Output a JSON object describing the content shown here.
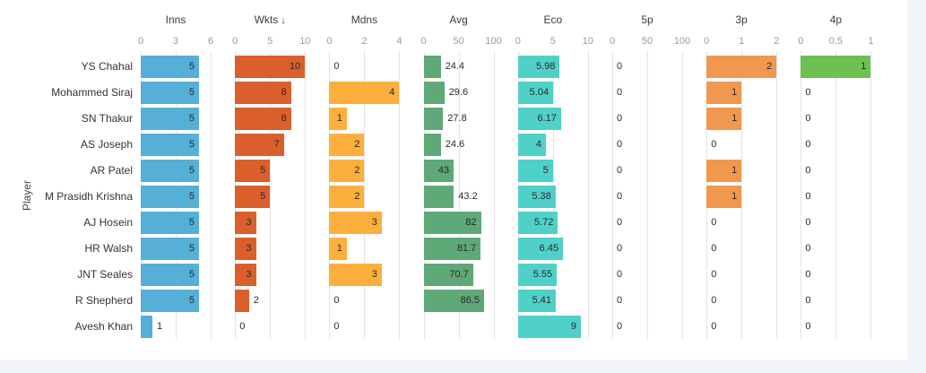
{
  "page": {
    "background_color": "#f1f4f9",
    "card_color": "#ffffff",
    "grid_color": "#e4e4e4"
  },
  "chart_data": {
    "type": "bar",
    "orientation": "horizontal",
    "title": "",
    "ylabel": "Player",
    "grid": true,
    "legend_position": "none",
    "categories": [
      "YS Chahal",
      "Mohammed Siraj",
      "SN Thakur",
      "AS Joseph",
      "AR Patel",
      "M Prasidh Krishna",
      "AJ Hosein",
      "HR Walsh",
      "JNT Seales",
      "R Shepherd",
      "Avesh Khan"
    ],
    "series": [
      {
        "name": "Inns",
        "sort_arrow": "",
        "color": "#55afd7",
        "axis_max": 6,
        "tick_labels": [
          "0",
          "3",
          "6"
        ],
        "values": [
          5,
          5,
          5,
          5,
          5,
          5,
          5,
          5,
          5,
          5,
          1
        ]
      },
      {
        "name": "Wkts",
        "sort_arrow": "↓",
        "color": "#db5f2d",
        "axis_max": 10,
        "tick_labels": [
          "0",
          "5",
          "10"
        ],
        "values": [
          10,
          8,
          8,
          7,
          5,
          5,
          3,
          3,
          3,
          2,
          0
        ]
      },
      {
        "name": "Mdns",
        "sort_arrow": "",
        "color": "#fcaf3c",
        "axis_max": 4,
        "tick_labels": [
          "0",
          "2",
          "4"
        ],
        "values": [
          0,
          4,
          1,
          2,
          2,
          2,
          3,
          1,
          3,
          0,
          0
        ]
      },
      {
        "name": "Avg",
        "sort_arrow": "",
        "color": "#5fa877",
        "axis_max": 100,
        "tick_labels": [
          "0",
          "50",
          "100"
        ],
        "values": [
          24.4,
          29.6,
          27.8,
          24.6,
          43,
          43.2,
          82,
          81.7,
          70.7,
          86.5,
          null
        ]
      },
      {
        "name": "Eco",
        "sort_arrow": "",
        "color": "#4fd1c9",
        "axis_max": 10,
        "tick_labels": [
          "0",
          "5",
          "10"
        ],
        "values": [
          5.98,
          5.04,
          6.17,
          4,
          5,
          5.38,
          5.72,
          6.45,
          5.55,
          5.41,
          9
        ]
      },
      {
        "name": "5p",
        "sort_arrow": "",
        "color": "#b08bd0",
        "axis_max": 100,
        "tick_labels": [
          "0",
          "50",
          "100"
        ],
        "values": [
          0,
          0,
          0,
          0,
          0,
          0,
          0,
          0,
          0,
          0,
          0
        ]
      },
      {
        "name": "3p",
        "sort_arrow": "",
        "color": "#f0984e",
        "axis_max": 2,
        "tick_labels": [
          "0",
          "1",
          "2"
        ],
        "values": [
          2,
          1,
          1,
          0,
          1,
          1,
          0,
          0,
          0,
          0,
          0
        ]
      },
      {
        "name": "4p",
        "sort_arrow": "",
        "color": "#6cc152",
        "axis_max": 1,
        "tick_labels": [
          "0",
          "0.5",
          "1"
        ],
        "values": [
          1,
          0,
          0,
          0,
          0,
          0,
          0,
          0,
          0,
          0,
          0
        ]
      }
    ]
  }
}
